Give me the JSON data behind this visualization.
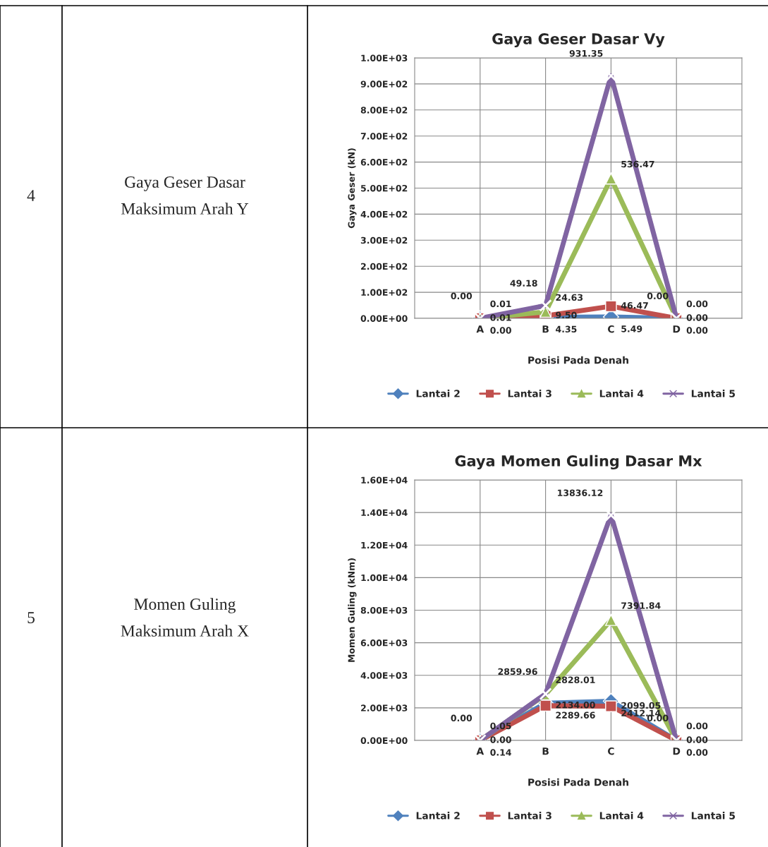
{
  "chart_data": [
    {
      "type": "line",
      "title": "Gaya Geser Dasar Vy",
      "xlabel": "Posisi Pada Denah",
      "ylabel": "Gaya Geser (kN)",
      "categories": [
        "A",
        "B",
        "C",
        "D"
      ],
      "series": [
        {
          "name": "Lantai 2",
          "color": "#4f81bd",
          "marker": "diamond",
          "values": [
            0,
            4.35,
            5.49,
            0
          ],
          "value_labels": [
            "0.00",
            "4.35",
            "5.49",
            "0.00"
          ]
        },
        {
          "name": "Lantai 3",
          "color": "#c0504d",
          "marker": "square",
          "values": [
            0.01,
            9.5,
            46.47,
            0
          ],
          "value_labels": [
            "0.01",
            "9.50",
            "46.47",
            "0.00"
          ]
        },
        {
          "name": "Lantai 4",
          "color": "#9bbb59",
          "marker": "triangle",
          "values": [
            0.01,
            24.63,
            536.47,
            0
          ],
          "value_labels": [
            "0.01",
            "24.63",
            "536.47",
            "0.00"
          ]
        },
        {
          "name": "Lantai 5",
          "color": "#8064a2",
          "marker": "cross",
          "values": [
            0,
            49.18,
            931.35,
            0
          ],
          "value_labels": [
            "0.00",
            "49.18",
            "931.35",
            "0.00"
          ]
        }
      ],
      "ylim": [
        0,
        1000
      ],
      "yticks": [
        {
          "value": 0,
          "label": "0.00E+00"
        },
        {
          "value": 100,
          "label": "1.00E+02"
        },
        {
          "value": 200,
          "label": "2.00E+02"
        },
        {
          "value": 300,
          "label": "3.00E+02"
        },
        {
          "value": 400,
          "label": "4.00E+02"
        },
        {
          "value": 500,
          "label": "5.00E+02"
        },
        {
          "value": 600,
          "label": "6.00E+02"
        },
        {
          "value": 700,
          "label": "7.00E+02"
        },
        {
          "value": 800,
          "label": "8.00E+02"
        },
        {
          "value": 900,
          "label": "9.00E+02"
        },
        {
          "value": 1000,
          "label": "1.00E+03"
        }
      ],
      "grid": true,
      "legend": "bottom",
      "annotations": [
        "4",
        "Gaya Geser Dasar\nMaksimum Arah Y"
      ]
    },
    {
      "type": "line",
      "title": "Gaya Momen Guling Dasar Mx",
      "xlabel": "Posisi Pada Denah",
      "ylabel": "Momen Guling (kNm)",
      "categories": [
        "A",
        "B",
        "C",
        "D"
      ],
      "series": [
        {
          "name": "Lantai 2",
          "color": "#4f81bd",
          "marker": "diamond",
          "values": [
            0.14,
            2289.66,
            2412.14,
            0
          ],
          "value_labels": [
            "0.14",
            "2289.66",
            "2412.14",
            "0.00"
          ]
        },
        {
          "name": "Lantai 3",
          "color": "#c0504d",
          "marker": "square",
          "values": [
            0,
            2134.0,
            2099.05,
            0
          ],
          "value_labels": [
            "0.00",
            "2134.00",
            "2099.05",
            "0.00"
          ]
        },
        {
          "name": "Lantai 4",
          "color": "#9bbb59",
          "marker": "triangle",
          "values": [
            0.05,
            2828.01,
            7391.84,
            0
          ],
          "value_labels": [
            "0.05",
            "2828.01",
            "7391.84",
            "0.00"
          ]
        },
        {
          "name": "Lantai 5",
          "color": "#8064a2",
          "marker": "cross",
          "values": [
            0,
            2859.96,
            13836.12,
            0
          ],
          "value_labels": [
            "0.00",
            "2859.96",
            "13836.12",
            "0.00"
          ]
        }
      ],
      "ylim": [
        0,
        16000
      ],
      "yticks": [
        {
          "value": 0,
          "label": "0.00E+00"
        },
        {
          "value": 2000,
          "label": "2.00E+03"
        },
        {
          "value": 4000,
          "label": "4.00E+03"
        },
        {
          "value": 6000,
          "label": "6.00E+03"
        },
        {
          "value": 8000,
          "label": "8.00E+03"
        },
        {
          "value": 10000,
          "label": "1.00E+04"
        },
        {
          "value": 12000,
          "label": "1.20E+04"
        },
        {
          "value": 14000,
          "label": "1.40E+04"
        },
        {
          "value": 16000,
          "label": "1.60E+04"
        }
      ],
      "grid": true,
      "legend": "bottom",
      "annotations": [
        "5",
        "Momen Guling\nMaksimum Arah X"
      ]
    }
  ]
}
